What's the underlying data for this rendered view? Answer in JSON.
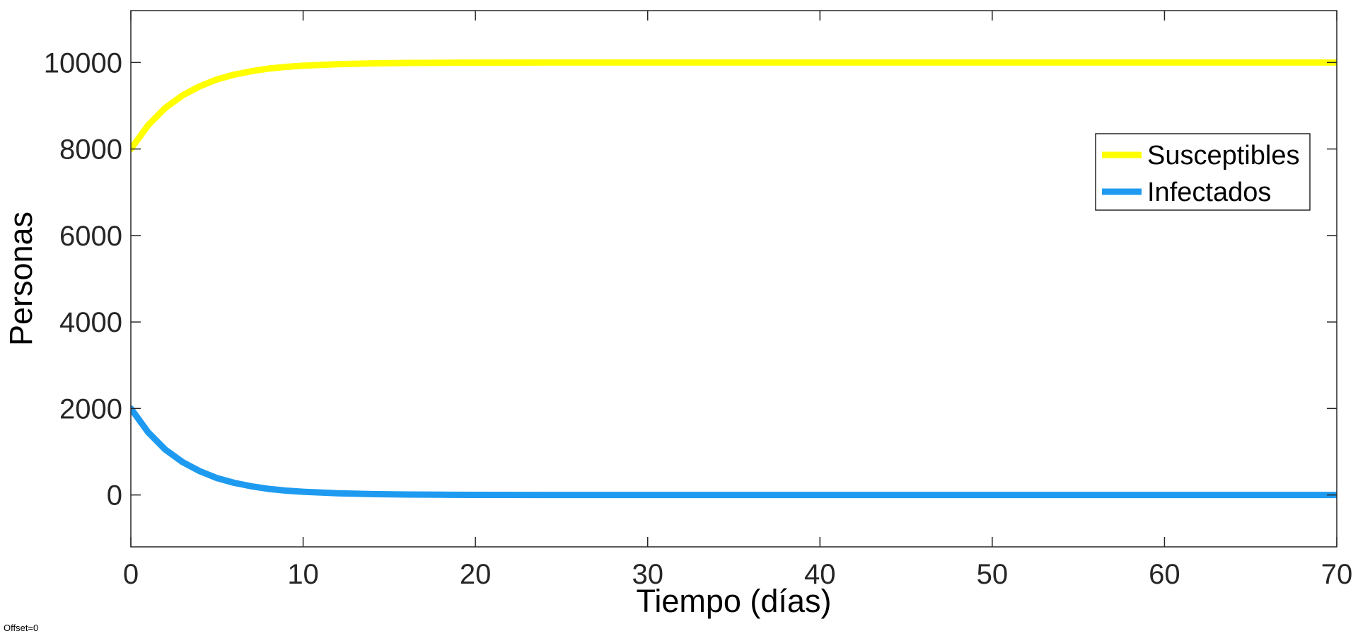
{
  "footnote": "Offset=0",
  "colors": {
    "background": "#ffffff",
    "axes": "#262626",
    "susceptibles": "#ffff00",
    "infectados": "#1e9bf0"
  },
  "chart_data": {
    "type": "line",
    "title": "",
    "xlabel": "Tiempo (días)",
    "ylabel": "Personas",
    "xlim": [
      0,
      70
    ],
    "ylim": [
      -1200,
      11200
    ],
    "xticks": [
      0,
      10,
      20,
      30,
      40,
      50,
      60,
      70
    ],
    "yticks": [
      0,
      2000,
      4000,
      6000,
      8000,
      10000
    ],
    "grid": false,
    "box": true,
    "legend_position": "upper-right",
    "series": [
      {
        "name": "Susceptibles",
        "color": "#ffff00",
        "x": [
          0,
          1,
          2,
          3,
          4,
          5,
          6,
          7,
          8,
          9,
          10,
          12,
          14,
          16,
          18,
          20,
          25,
          30,
          40,
          50,
          60,
          70
        ],
        "y": [
          8000,
          8550,
          8950,
          9240,
          9450,
          9610,
          9720,
          9800,
          9860,
          9900,
          9925,
          9960,
          9980,
          9990,
          9995,
          9998,
          10000,
          10000,
          10000,
          10000,
          10000,
          10000
        ]
      },
      {
        "name": "Infectados",
        "color": "#1e9bf0",
        "x": [
          0,
          1,
          2,
          3,
          4,
          5,
          6,
          7,
          8,
          9,
          10,
          12,
          14,
          16,
          18,
          20,
          25,
          30,
          40,
          50,
          60,
          70
        ],
        "y": [
          2000,
          1450,
          1050,
          760,
          550,
          390,
          280,
          200,
          140,
          100,
          75,
          40,
          20,
          10,
          5,
          2,
          0,
          0,
          0,
          0,
          0,
          0
        ]
      }
    ]
  }
}
